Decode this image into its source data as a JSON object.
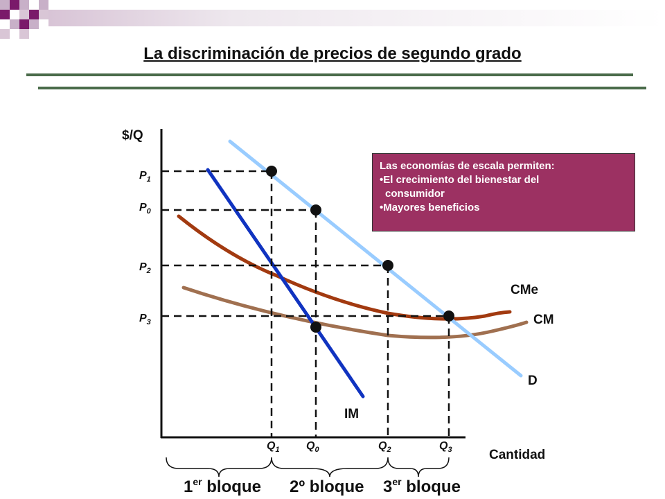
{
  "title": "La discriminación de precios de segundo grado",
  "note": {
    "heading": "Las economías de escala permiten:",
    "bullet1_a": "•El crecimiento del bienestar del",
    "bullet1_b": "consumidor",
    "bullet2": "•Mayores beneficios"
  },
  "axes": {
    "y_label": "$/Q",
    "x_label": "Cantidad"
  },
  "prices": [
    {
      "base": "P",
      "sub": "1"
    },
    {
      "base": "P",
      "sub": "0"
    },
    {
      "base": "P",
      "sub": "2"
    },
    {
      "base": "P",
      "sub": "3"
    }
  ],
  "quantities": [
    {
      "base": "Q",
      "sub": "1"
    },
    {
      "base": "Q",
      "sub": "0"
    },
    {
      "base": "Q",
      "sub": "2"
    },
    {
      "base": "Q",
      "sub": "3"
    }
  ],
  "curves": {
    "demand": "D",
    "marginal_revenue": "IM",
    "average_cost": "CMe",
    "marginal_cost": "CM"
  },
  "blocks": [
    {
      "num": "1",
      "sup": "er",
      "word": " bloque"
    },
    {
      "num": "2º",
      "sup": "",
      "word": " bloque"
    },
    {
      "num": "3",
      "sup": "er",
      "word": " bloque"
    }
  ],
  "colors": {
    "demand": "#99ccff",
    "marginal_revenue": "#1033c0",
    "average_cost": "#a23a10",
    "marginal_cost": "#a07050",
    "note_bg": "#9c3162",
    "rule": "#4a6b4a"
  }
}
